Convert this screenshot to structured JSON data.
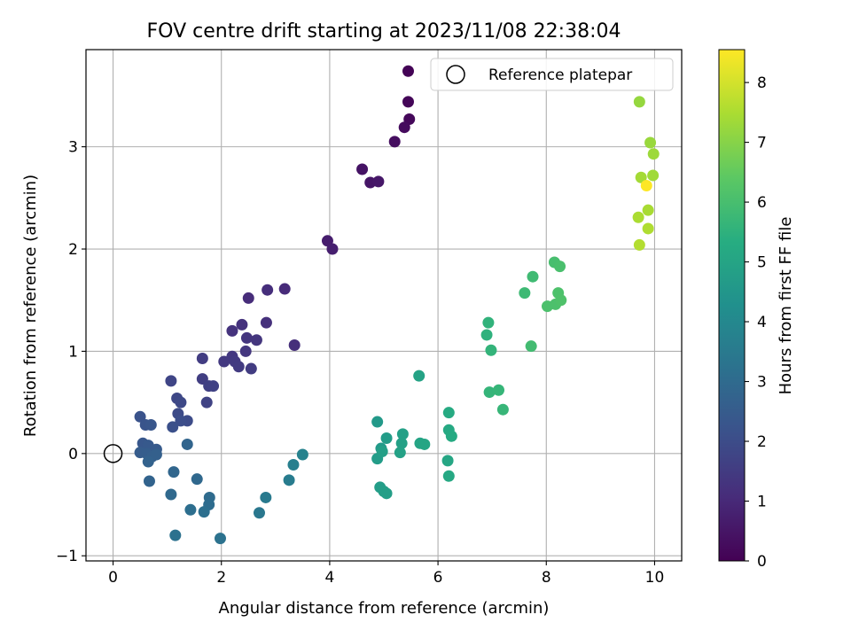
{
  "chart_data": {
    "type": "scatter",
    "title": "FOV centre drift starting at 2023/11/08 22:38:04",
    "xlabel": "Angular distance from reference (arcmin)",
    "ylabel": "Rotation from reference (arcmin)",
    "xlim": [
      -0.5,
      10.5
    ],
    "ylim": [
      -1.05,
      3.95
    ],
    "xticks": [
      0,
      2,
      4,
      6,
      8,
      10
    ],
    "yticks": [
      -1,
      0,
      1,
      2,
      3
    ],
    "grid": true,
    "legend": {
      "position": "top-right",
      "label": "Reference platepar"
    },
    "reference_point": {
      "x": 0,
      "y": 0
    },
    "colorbar": {
      "label": "Hours from first FF file",
      "min": 0,
      "max": 8.55,
      "ticks": [
        0,
        1,
        2,
        3,
        4,
        5,
        6,
        7,
        8
      ],
      "colormap": "viridis"
    },
    "points": [
      {
        "x": 5.45,
        "y": 3.74,
        "c": 0.05
      },
      {
        "x": 5.45,
        "y": 3.44,
        "c": 0.12
      },
      {
        "x": 5.47,
        "y": 3.27,
        "c": 0.18
      },
      {
        "x": 5.38,
        "y": 3.19,
        "c": 0.25
      },
      {
        "x": 5.2,
        "y": 3.05,
        "c": 0.32
      },
      {
        "x": 4.6,
        "y": 2.78,
        "c": 0.45
      },
      {
        "x": 4.75,
        "y": 2.65,
        "c": 0.5
      },
      {
        "x": 4.9,
        "y": 2.66,
        "c": 0.55
      },
      {
        "x": 3.96,
        "y": 2.08,
        "c": 0.7
      },
      {
        "x": 4.05,
        "y": 2.0,
        "c": 0.75
      },
      {
        "x": 3.17,
        "y": 1.61,
        "c": 1.05
      },
      {
        "x": 2.5,
        "y": 1.52,
        "c": 1.1
      },
      {
        "x": 2.85,
        "y": 1.6,
        "c": 1.12
      },
      {
        "x": 3.35,
        "y": 1.06,
        "c": 1.15
      },
      {
        "x": 2.83,
        "y": 1.28,
        "c": 1.2
      },
      {
        "x": 2.38,
        "y": 1.26,
        "c": 1.25
      },
      {
        "x": 2.2,
        "y": 1.2,
        "c": 1.28
      },
      {
        "x": 2.47,
        "y": 1.13,
        "c": 1.32
      },
      {
        "x": 2.65,
        "y": 1.11,
        "c": 1.35
      },
      {
        "x": 2.45,
        "y": 1.0,
        "c": 1.38
      },
      {
        "x": 2.2,
        "y": 0.95,
        "c": 1.42
      },
      {
        "x": 2.05,
        "y": 0.9,
        "c": 1.45
      },
      {
        "x": 2.25,
        "y": 0.9,
        "c": 1.48
      },
      {
        "x": 2.32,
        "y": 0.85,
        "c": 1.5
      },
      {
        "x": 2.55,
        "y": 0.83,
        "c": 1.52
      },
      {
        "x": 1.65,
        "y": 0.93,
        "c": 1.55
      },
      {
        "x": 1.65,
        "y": 0.73,
        "c": 1.6
      },
      {
        "x": 1.77,
        "y": 0.66,
        "c": 1.65
      },
      {
        "x": 1.85,
        "y": 0.66,
        "c": 1.68
      },
      {
        "x": 1.73,
        "y": 0.5,
        "c": 1.72
      },
      {
        "x": 1.07,
        "y": 0.71,
        "c": 1.8
      },
      {
        "x": 1.18,
        "y": 0.54,
        "c": 1.85
      },
      {
        "x": 1.25,
        "y": 0.5,
        "c": 1.9
      },
      {
        "x": 1.2,
        "y": 0.39,
        "c": 1.95
      },
      {
        "x": 1.37,
        "y": 0.32,
        "c": 2.0
      },
      {
        "x": 1.25,
        "y": 0.32,
        "c": 2.05
      },
      {
        "x": 1.1,
        "y": 0.26,
        "c": 2.1
      },
      {
        "x": 0.5,
        "y": 0.36,
        "c": 2.2
      },
      {
        "x": 0.6,
        "y": 0.28,
        "c": 2.25
      },
      {
        "x": 0.7,
        "y": 0.28,
        "c": 2.3
      },
      {
        "x": 0.55,
        "y": 0.1,
        "c": 2.35
      },
      {
        "x": 0.65,
        "y": 0.08,
        "c": 2.4
      },
      {
        "x": 0.8,
        "y": 0.04,
        "c": 2.45
      },
      {
        "x": 0.5,
        "y": 0.01,
        "c": 2.5
      },
      {
        "x": 0.62,
        "y": 0.0,
        "c": 2.55
      },
      {
        "x": 0.72,
        "y": -0.03,
        "c": 2.6
      },
      {
        "x": 0.8,
        "y": -0.01,
        "c": 2.65
      },
      {
        "x": 0.65,
        "y": -0.08,
        "c": 2.7
      },
      {
        "x": 0.67,
        "y": -0.27,
        "c": 2.75
      },
      {
        "x": 1.37,
        "y": 0.09,
        "c": 2.8
      },
      {
        "x": 1.12,
        "y": -0.18,
        "c": 2.85
      },
      {
        "x": 1.55,
        "y": -0.25,
        "c": 2.9
      },
      {
        "x": 1.07,
        "y": -0.4,
        "c": 2.95
      },
      {
        "x": 1.78,
        "y": -0.43,
        "c": 3.0
      },
      {
        "x": 1.77,
        "y": -0.5,
        "c": 3.05
      },
      {
        "x": 1.43,
        "y": -0.55,
        "c": 3.1
      },
      {
        "x": 1.68,
        "y": -0.57,
        "c": 3.15
      },
      {
        "x": 1.15,
        "y": -0.8,
        "c": 3.2
      },
      {
        "x": 1.98,
        "y": -0.83,
        "c": 3.25
      },
      {
        "x": 2.7,
        "y": -0.58,
        "c": 3.4
      },
      {
        "x": 2.82,
        "y": -0.43,
        "c": 3.5
      },
      {
        "x": 3.25,
        "y": -0.26,
        "c": 3.6
      },
      {
        "x": 3.33,
        "y": -0.11,
        "c": 3.7
      },
      {
        "x": 3.5,
        "y": -0.01,
        "c": 3.8
      },
      {
        "x": 4.88,
        "y": 0.31,
        "c": 4.6
      },
      {
        "x": 4.95,
        "y": 0.05,
        "c": 4.65
      },
      {
        "x": 5.05,
        "y": 0.15,
        "c": 4.7
      },
      {
        "x": 4.88,
        "y": -0.05,
        "c": 4.72
      },
      {
        "x": 4.93,
        "y": -0.33,
        "c": 4.75
      },
      {
        "x": 5.0,
        "y": -0.37,
        "c": 4.78
      },
      {
        "x": 5.05,
        "y": -0.39,
        "c": 4.8
      },
      {
        "x": 4.97,
        "y": 0.02,
        "c": 4.82
      },
      {
        "x": 5.35,
        "y": 0.19,
        "c": 4.85
      },
      {
        "x": 5.33,
        "y": 0.1,
        "c": 4.88
      },
      {
        "x": 5.3,
        "y": 0.01,
        "c": 4.9
      },
      {
        "x": 5.65,
        "y": 0.76,
        "c": 4.95
      },
      {
        "x": 5.67,
        "y": 0.1,
        "c": 5.0
      },
      {
        "x": 5.75,
        "y": 0.09,
        "c": 5.05
      },
      {
        "x": 6.18,
        "y": -0.07,
        "c": 5.1
      },
      {
        "x": 6.2,
        "y": -0.22,
        "c": 5.15
      },
      {
        "x": 6.2,
        "y": 0.23,
        "c": 5.2
      },
      {
        "x": 6.25,
        "y": 0.17,
        "c": 5.22
      },
      {
        "x": 6.2,
        "y": 0.4,
        "c": 5.25
      },
      {
        "x": 6.9,
        "y": 1.16,
        "c": 5.5
      },
      {
        "x": 6.93,
        "y": 1.28,
        "c": 5.55
      },
      {
        "x": 6.98,
        "y": 1.01,
        "c": 5.6
      },
      {
        "x": 6.95,
        "y": 0.6,
        "c": 5.62
      },
      {
        "x": 7.12,
        "y": 0.62,
        "c": 5.65
      },
      {
        "x": 7.2,
        "y": 0.43,
        "c": 5.68
      },
      {
        "x": 7.6,
        "y": 1.57,
        "c": 5.8
      },
      {
        "x": 7.75,
        "y": 1.73,
        "c": 5.85
      },
      {
        "x": 7.72,
        "y": 1.05,
        "c": 5.9
      },
      {
        "x": 8.15,
        "y": 1.87,
        "c": 6.0
      },
      {
        "x": 8.25,
        "y": 1.83,
        "c": 6.05
      },
      {
        "x": 8.02,
        "y": 1.44,
        "c": 6.08
      },
      {
        "x": 8.17,
        "y": 1.46,
        "c": 6.1
      },
      {
        "x": 8.22,
        "y": 1.57,
        "c": 6.12
      },
      {
        "x": 8.27,
        "y": 1.5,
        "c": 6.15
      },
      {
        "x": 9.72,
        "y": 3.44,
        "c": 7.2
      },
      {
        "x": 9.92,
        "y": 3.04,
        "c": 7.25
      },
      {
        "x": 9.98,
        "y": 2.93,
        "c": 7.3
      },
      {
        "x": 9.97,
        "y": 2.72,
        "c": 7.35
      },
      {
        "x": 9.75,
        "y": 2.7,
        "c": 7.4
      },
      {
        "x": 9.88,
        "y": 2.38,
        "c": 7.45
      },
      {
        "x": 9.7,
        "y": 2.31,
        "c": 7.5
      },
      {
        "x": 9.88,
        "y": 2.2,
        "c": 7.55
      },
      {
        "x": 9.72,
        "y": 2.04,
        "c": 7.6
      },
      {
        "x": 9.85,
        "y": 2.62,
        "c": 8.55
      }
    ]
  }
}
